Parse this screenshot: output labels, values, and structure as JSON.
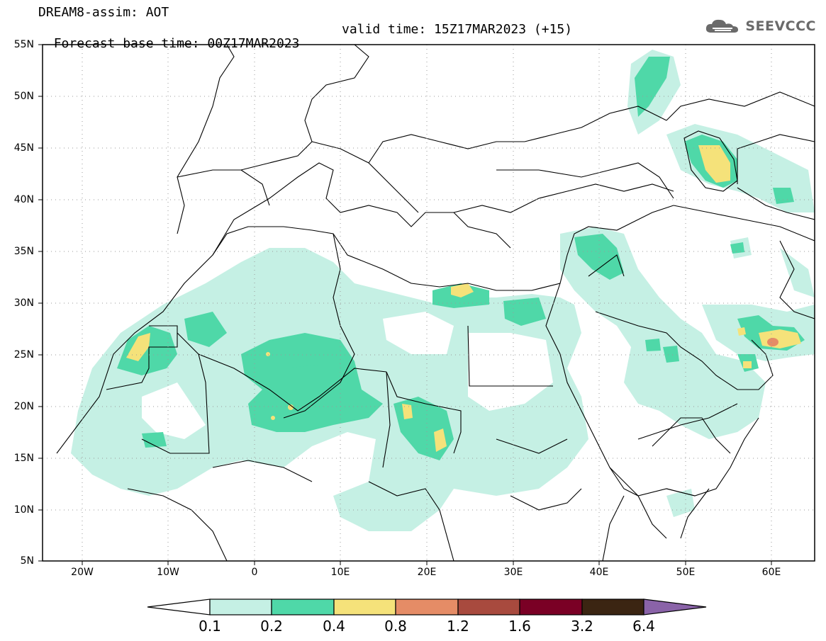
{
  "header": {
    "title": "DREAM8-assim: AOT",
    "base_time": "Forecast base time: 00Z17MAR2023",
    "valid_time": "valid time: 15Z17MAR2023 (+15)"
  },
  "logo": {
    "text": "SEEVCCC",
    "icon": "cloud-icon"
  },
  "map": {
    "lat_labels": [
      "55N",
      "50N",
      "45N",
      "40N",
      "35N",
      "30N",
      "25N",
      "20N",
      "15N",
      "10N",
      "5N"
    ],
    "lon_labels": [
      "20W",
      "10W",
      "0",
      "10E",
      "20E",
      "30E",
      "40E",
      "50E",
      "60E"
    ],
    "grid": true
  },
  "colorbar": {
    "labels": [
      "0.1",
      "0.2",
      "0.4",
      "0.8",
      "1.2",
      "1.6",
      "3.2",
      "6.4"
    ],
    "colors": [
      "#ffffff",
      "#c5f0e4",
      "#4fd8a8",
      "#f5e27a",
      "#e58c66",
      "#a84a3e",
      "#7a0025",
      "#3b2512",
      "#8a63a8"
    ]
  }
}
